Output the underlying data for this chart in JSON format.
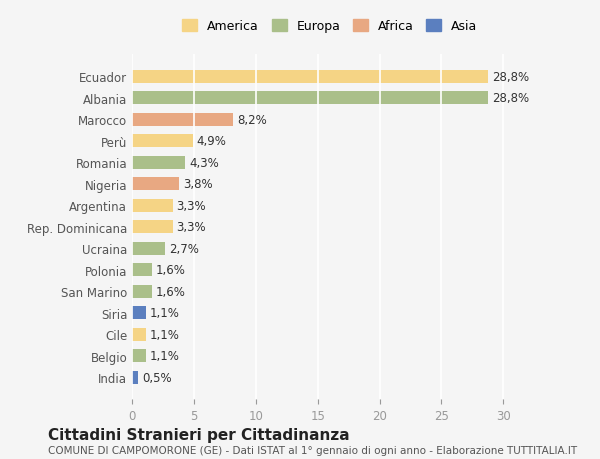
{
  "categories": [
    "India",
    "Belgio",
    "Cile",
    "Siria",
    "San Marino",
    "Polonia",
    "Ucraina",
    "Rep. Dominicana",
    "Argentina",
    "Nigeria",
    "Romania",
    "Perù",
    "Marocco",
    "Albania",
    "Ecuador"
  ],
  "values": [
    0.5,
    1.1,
    1.1,
    1.1,
    1.6,
    1.6,
    2.7,
    3.3,
    3.3,
    3.8,
    4.3,
    4.9,
    8.2,
    28.8,
    28.8
  ],
  "continents": [
    "Asia",
    "Europa",
    "America",
    "Asia",
    "Europa",
    "Europa",
    "Europa",
    "America",
    "America",
    "Africa",
    "Europa",
    "America",
    "Africa",
    "Europa",
    "America"
  ],
  "colors": {
    "America": "#F5D485",
    "Europa": "#AABF8A",
    "Africa": "#E8A882",
    "Asia": "#5B7FBF"
  },
  "legend_order": [
    "America",
    "Europa",
    "Africa",
    "Asia"
  ],
  "labels": [
    "0,5%",
    "1,1%",
    "1,1%",
    "1,1%",
    "1,6%",
    "1,6%",
    "2,7%",
    "3,3%",
    "3,3%",
    "3,8%",
    "4,3%",
    "4,9%",
    "8,2%",
    "28,8%",
    "28,8%"
  ],
  "xlim": [
    0,
    32
  ],
  "xticks": [
    0,
    5,
    10,
    15,
    20,
    25,
    30
  ],
  "title": "Cittadini Stranieri per Cittadinanza",
  "subtitle": "COMUNE DI CAMPOMORONE (GE) - Dati ISTAT al 1° gennaio di ogni anno - Elaborazione TUTTITALIA.IT",
  "background_color": "#f5f5f5",
  "bar_height": 0.6,
  "grid_color": "#ffffff",
  "label_fontsize": 8.5,
  "title_fontsize": 11,
  "subtitle_fontsize": 7.5
}
